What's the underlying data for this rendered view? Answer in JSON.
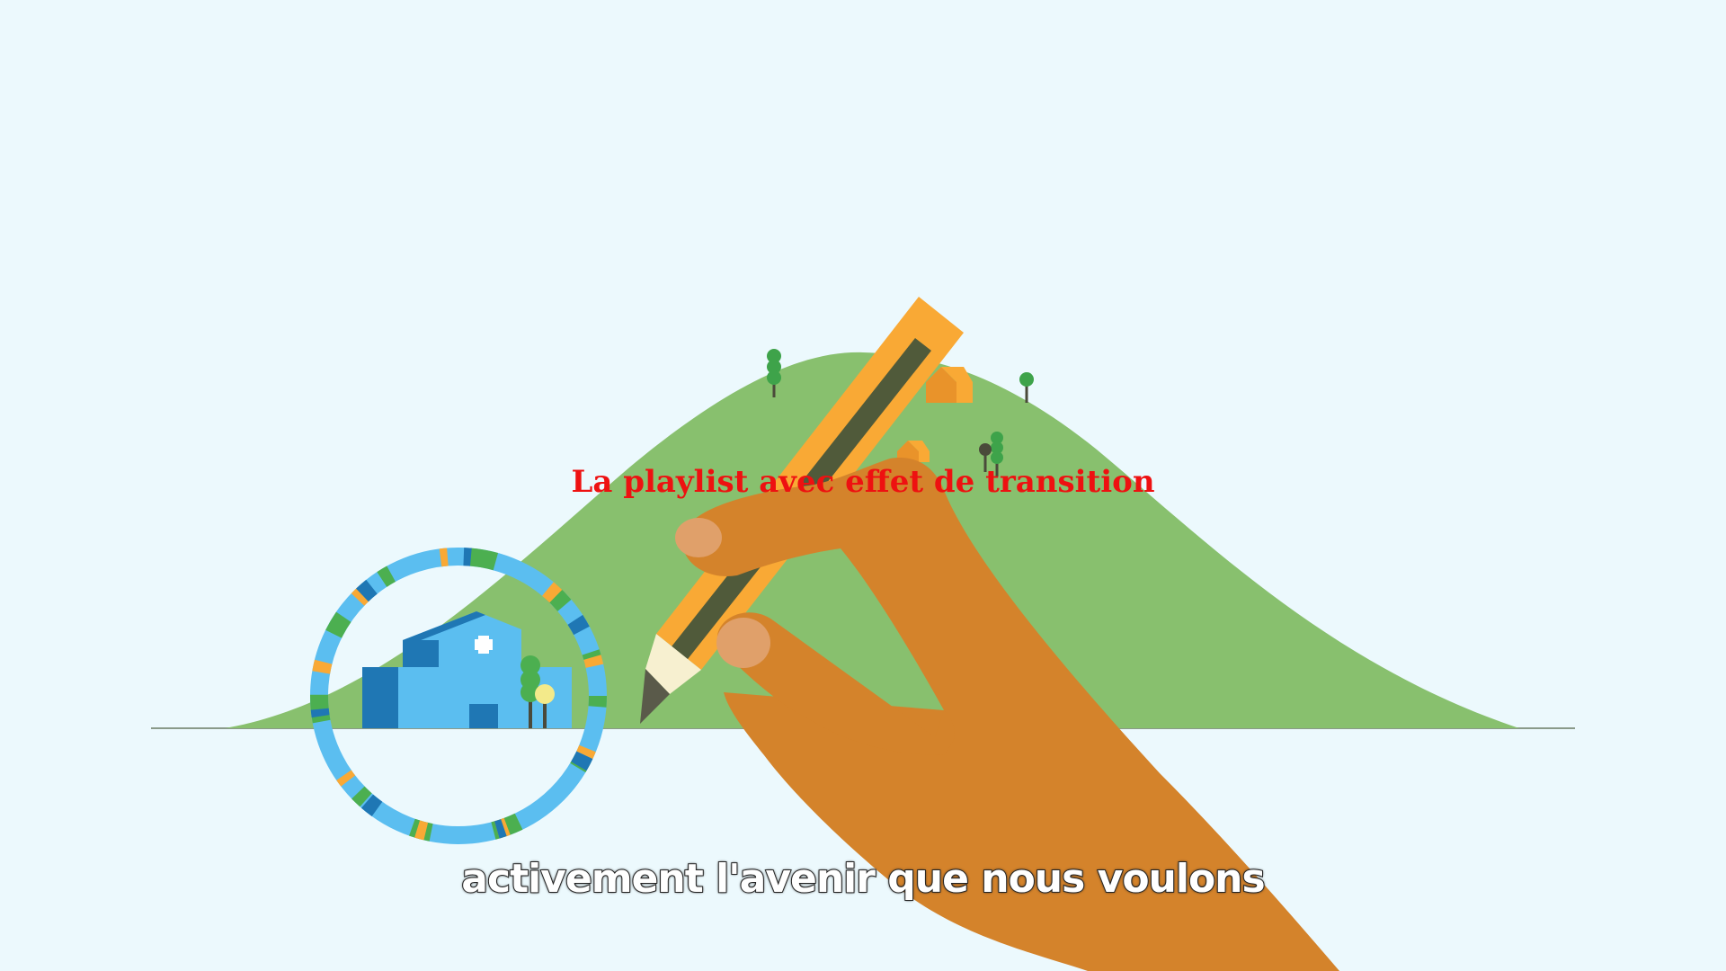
{
  "overlay": {
    "title": "La playlist avec effet de transition",
    "title_color": "#ee1111"
  },
  "subtitle": {
    "text": "activement l'avenir que nous voulons"
  },
  "scene": {
    "background_color": "#ecf9fd",
    "hill_color": "#88c06e",
    "hand_color": "#d4832b",
    "pencil_color": "#f9a935",
    "building_color": "#5bbef0",
    "ring_colors": [
      "#5bbef0",
      "#4caf50",
      "#f9a935",
      "#1f77b4"
    ],
    "icons": [
      "hill",
      "hand",
      "pencil",
      "hospital-building",
      "tree",
      "house",
      "ring"
    ]
  }
}
